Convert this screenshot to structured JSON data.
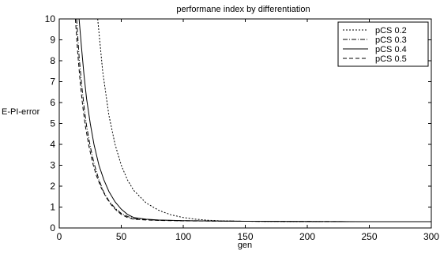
{
  "chart_data": {
    "type": "line",
    "title": "performane index by differentiation",
    "xlabel": "gen",
    "ylabel": "E-PI-error",
    "xlim": [
      0,
      300
    ],
    "ylim": [
      0,
      10
    ],
    "xticks": [
      0,
      50,
      100,
      150,
      200,
      250,
      300
    ],
    "yticks": [
      0,
      1,
      2,
      3,
      4,
      5,
      6,
      7,
      8,
      9,
      10
    ],
    "grid": false,
    "legend_position": "top-right",
    "series": [
      {
        "name": "pCS 0.2",
        "line_style": "dotted",
        "x": [
          31,
          35,
          40,
          45,
          50,
          55,
          60,
          70,
          80,
          90,
          100,
          110,
          120,
          130,
          140,
          150,
          175,
          200,
          250,
          300
        ],
        "y": [
          10,
          7.5,
          5.4,
          4.0,
          3.0,
          2.3,
          1.8,
          1.2,
          0.85,
          0.63,
          0.5,
          0.42,
          0.37,
          0.34,
          0.33,
          0.32,
          0.31,
          0.3,
          0.3,
          0.3
        ]
      },
      {
        "name": "pCS 0.3",
        "line_style": "dash-dot",
        "x": [
          14,
          16,
          18,
          20,
          22,
          25,
          28,
          32,
          36,
          40,
          45,
          50,
          55,
          60,
          70,
          80,
          100,
          150,
          200,
          250,
          300
        ],
        "y": [
          10,
          8.2,
          6.9,
          5.8,
          4.9,
          3.9,
          3.1,
          2.3,
          1.7,
          1.3,
          0.95,
          0.7,
          0.55,
          0.45,
          0.4,
          0.37,
          0.35,
          0.32,
          0.31,
          0.3,
          0.3
        ]
      },
      {
        "name": "pCS 0.4",
        "line_style": "solid",
        "x": [
          16,
          18,
          20,
          22,
          25,
          28,
          32,
          36,
          40,
          45,
          50,
          55,
          60,
          70,
          80,
          100,
          150,
          200,
          250,
          300
        ],
        "y": [
          10,
          8.6,
          7.3,
          6.2,
          5.0,
          4.0,
          3.0,
          2.3,
          1.75,
          1.25,
          0.9,
          0.65,
          0.5,
          0.42,
          0.38,
          0.35,
          0.32,
          0.31,
          0.3,
          0.3
        ]
      },
      {
        "name": "pCS 0.5",
        "line_style": "dashed",
        "x": [
          13,
          15,
          17,
          19,
          21,
          24,
          27,
          30,
          34,
          38,
          42,
          46,
          50,
          55,
          60,
          70,
          80,
          100,
          150,
          200,
          250,
          300
        ],
        "y": [
          10,
          8.3,
          6.9,
          5.8,
          4.9,
          3.9,
          3.1,
          2.5,
          1.9,
          1.45,
          1.1,
          0.85,
          0.65,
          0.5,
          0.42,
          0.38,
          0.36,
          0.34,
          0.32,
          0.31,
          0.3,
          0.3
        ]
      }
    ]
  }
}
